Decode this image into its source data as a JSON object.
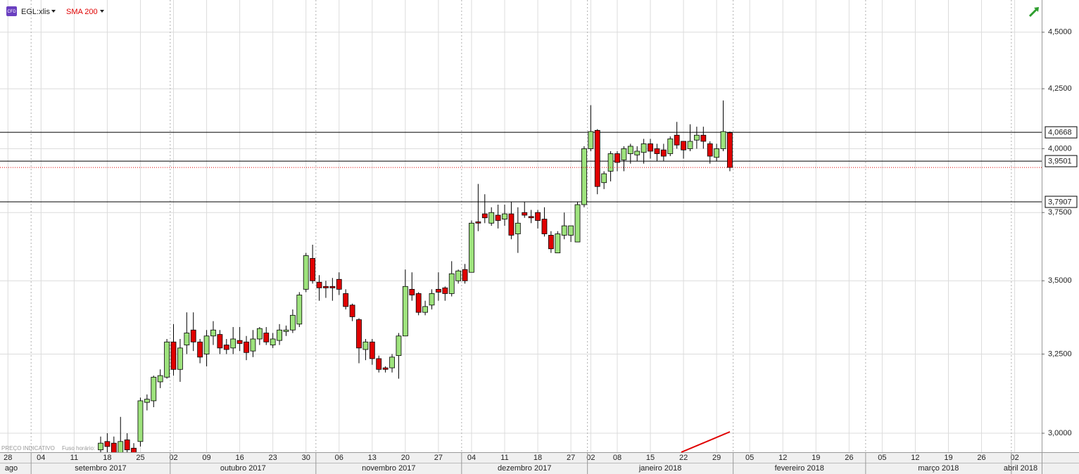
{
  "chart_data": {
    "type": "candlestick",
    "symbol": "EGL:xlis",
    "badge": "CFD",
    "indicator": "SMA 200",
    "indicator_color": "#e00000",
    "footnote": "PREÇO INDICATIVO",
    "timezone_label": "Fuso horário:",
    "log_scale": true,
    "grid": true,
    "up_color": "#9ee37d",
    "down_color": "#e00000",
    "ylim": [
      2.943,
      4.649
    ],
    "yticks": [
      {
        "value": 3.0,
        "label": "3,0000"
      },
      {
        "value": 3.25,
        "label": "3,2500"
      },
      {
        "value": 3.5,
        "label": "3,5000"
      },
      {
        "value": 3.75,
        "label": "3,7500"
      },
      {
        "value": 4.0,
        "label": "4,0000"
      },
      {
        "value": 4.25,
        "label": "4,2500"
      },
      {
        "value": 4.5,
        "label": "4,5000"
      }
    ],
    "levels": [
      {
        "value": 4.0668,
        "label": "4,0668"
      },
      {
        "value": 3.9501,
        "label": "3,9501"
      },
      {
        "value": 3.7907,
        "label": "3,7907"
      }
    ],
    "xticks": [
      {
        "value": "2017-08-28",
        "label": "28"
      },
      {
        "value": "2017-09-04",
        "label": "04"
      },
      {
        "value": "2017-09-11",
        "label": "11"
      },
      {
        "value": "2017-09-18",
        "label": "18"
      },
      {
        "value": "2017-09-25",
        "label": "25"
      },
      {
        "value": "2017-10-02",
        "label": "02"
      },
      {
        "value": "2017-10-09",
        "label": "09"
      },
      {
        "value": "2017-10-16",
        "label": "16"
      },
      {
        "value": "2017-10-23",
        "label": "23"
      },
      {
        "value": "2017-10-30",
        "label": "30"
      },
      {
        "value": "2017-11-06",
        "label": "06"
      },
      {
        "value": "2017-11-13",
        "label": "13"
      },
      {
        "value": "2017-11-20",
        "label": "20"
      },
      {
        "value": "2017-11-27",
        "label": "27"
      },
      {
        "value": "2017-12-04",
        "label": "04"
      },
      {
        "value": "2017-12-11",
        "label": "11"
      },
      {
        "value": "2017-12-18",
        "label": "18"
      },
      {
        "value": "2017-12-27",
        "label": "27"
      },
      {
        "value": "2018-01-02",
        "label": "02"
      },
      {
        "value": "2018-01-08",
        "label": "08"
      },
      {
        "value": "2018-01-15",
        "label": "15"
      },
      {
        "value": "2018-01-22",
        "label": "22"
      },
      {
        "value": "2018-01-29",
        "label": "29"
      },
      {
        "value": "2018-02-05",
        "label": "05"
      },
      {
        "value": "2018-02-12",
        "label": "12"
      },
      {
        "value": "2018-02-19",
        "label": "19"
      },
      {
        "value": "2018-02-26",
        "label": "26"
      },
      {
        "value": "2018-03-05",
        "label": "05"
      },
      {
        "value": "2018-03-12",
        "label": "12"
      },
      {
        "value": "2018-03-19",
        "label": "19"
      },
      {
        "value": "2018-03-26",
        "label": "26"
      },
      {
        "value": "2018-04-02",
        "label": "02"
      }
    ],
    "months": [
      {
        "value": "2017-08",
        "label": "ago"
      },
      {
        "value": "2017-09",
        "label": "setembro 2017"
      },
      {
        "value": "2017-10",
        "label": "outubro 2017"
      },
      {
        "value": "2017-11",
        "label": "novembro 2017"
      },
      {
        "value": "2017-12",
        "label": "dezembro 2017"
      },
      {
        "value": "2018-01",
        "label": "janeiro 2018"
      },
      {
        "value": "2018-02",
        "label": "fevereiro 2018"
      },
      {
        "value": "2018-03",
        "label": "março 2018"
      },
      {
        "value": "2018-04",
        "label": "abril 2018"
      }
    ],
    "x": [
      "2017-09-15",
      "2017-09-18",
      "2017-09-19",
      "2017-09-20",
      "2017-09-21",
      "2017-09-22",
      "2017-09-25",
      "2017-09-26",
      "2017-09-27",
      "2017-09-28",
      "2017-09-29",
      "2017-10-02",
      "2017-10-03",
      "2017-10-04",
      "2017-10-05",
      "2017-10-06",
      "2017-10-09",
      "2017-10-10",
      "2017-10-11",
      "2017-10-12",
      "2017-10-13",
      "2017-10-16",
      "2017-10-17",
      "2017-10-18",
      "2017-10-19",
      "2017-10-20",
      "2017-10-23",
      "2017-10-24",
      "2017-10-25",
      "2017-10-26",
      "2017-10-27",
      "2017-10-30",
      "2017-10-31",
      "2017-11-01",
      "2017-11-02",
      "2017-11-03",
      "2017-11-06",
      "2017-11-07",
      "2017-11-08",
      "2017-11-09",
      "2017-11-10",
      "2017-11-13",
      "2017-11-14",
      "2017-11-15",
      "2017-11-16",
      "2017-11-17",
      "2017-11-20",
      "2017-11-21",
      "2017-11-22",
      "2017-11-23",
      "2017-11-24",
      "2017-11-27",
      "2017-11-28",
      "2017-11-29",
      "2017-11-30",
      "2017-12-01",
      "2017-12-04",
      "2017-12-05",
      "2017-12-06",
      "2017-12-07",
      "2017-12-08",
      "2017-12-11",
      "2017-12-12",
      "2017-12-13",
      "2017-12-14",
      "2017-12-15",
      "2017-12-18",
      "2017-12-19",
      "2017-12-20",
      "2017-12-21",
      "2017-12-22",
      "2017-12-27",
      "2017-12-28",
      "2017-12-29",
      "2018-01-02",
      "2018-01-03",
      "2018-01-04",
      "2018-01-05",
      "2018-01-08",
      "2018-01-09",
      "2018-01-10",
      "2018-01-11",
      "2018-01-12",
      "2018-01-15",
      "2018-01-16",
      "2018-01-17",
      "2018-01-18",
      "2018-01-19",
      "2018-01-22",
      "2018-01-23",
      "2018-01-24",
      "2018-01-25",
      "2018-01-26",
      "2018-01-29",
      "2018-01-30",
      "2018-01-31"
    ],
    "open": [
      2.95,
      2.975,
      2.97,
      2.94,
      2.98,
      2.955,
      2.975,
      3.095,
      3.1,
      3.16,
      3.175,
      3.29,
      3.2,
      3.28,
      3.33,
      3.29,
      3.25,
      3.31,
      3.315,
      3.28,
      3.27,
      3.295,
      3.29,
      3.26,
      3.3,
      3.32,
      3.28,
      3.295,
      3.325,
      3.33,
      3.35,
      3.47,
      3.58,
      3.495,
      3.48,
      3.48,
      3.505,
      3.455,
      3.415,
      3.365,
      3.265,
      3.29,
      3.235,
      3.205,
      3.205,
      3.245,
      3.31,
      3.47,
      3.455,
      3.39,
      3.415,
      3.47,
      3.475,
      3.455,
      3.5,
      3.54,
      3.53,
      3.715,
      3.745,
      3.71,
      3.74,
      3.725,
      3.745,
      3.67,
      3.75,
      3.735,
      3.75,
      3.725,
      3.665,
      3.6,
      3.665,
      3.665,
      3.64,
      3.78,
      4.0,
      4.075,
      3.865,
      3.91,
      3.98,
      3.955,
      3.98,
      3.975,
      3.985,
      4.02,
      4.0,
      3.995,
      3.98,
      4.055,
      4.03,
      4.0,
      4.035,
      4.055,
      4.02,
      3.965,
      4.0,
      4.065
    ],
    "high": [
      2.99,
      3.0,
      2.99,
      3.05,
      3.0,
      2.97,
      3.11,
      3.12,
      3.18,
      3.2,
      3.3,
      3.35,
      3.3,
      3.39,
      3.39,
      3.3,
      3.33,
      3.36,
      3.33,
      3.3,
      3.34,
      3.34,
      3.31,
      3.33,
      3.34,
      3.34,
      3.32,
      3.35,
      3.345,
      3.4,
      3.46,
      3.6,
      3.63,
      3.52,
      3.5,
      3.51,
      3.53,
      3.47,
      3.42,
      3.37,
      3.3,
      3.3,
      3.245,
      3.21,
      3.25,
      3.32,
      3.54,
      3.53,
      3.46,
      3.43,
      3.47,
      3.53,
      3.48,
      3.57,
      3.54,
      3.56,
      3.72,
      3.86,
      3.82,
      3.77,
      3.78,
      3.78,
      3.79,
      3.77,
      3.79,
      3.76,
      3.76,
      3.77,
      3.68,
      3.68,
      3.75,
      3.7,
      3.79,
      4.01,
      4.18,
      4.08,
      3.91,
      3.99,
      3.99,
      4.01,
      4.02,
      4.01,
      4.04,
      4.04,
      4.02,
      4.02,
      4.05,
      4.11,
      4.03,
      4.1,
      4.09,
      4.09,
      4.03,
      4.02,
      4.2,
      4.07
    ],
    "low": [
      2.93,
      2.94,
      2.92,
      2.92,
      2.93,
      2.92,
      2.96,
      3.07,
      3.08,
      3.14,
      3.17,
      3.18,
      3.16,
      3.25,
      3.26,
      3.22,
      3.21,
      3.28,
      3.25,
      3.25,
      3.25,
      3.26,
      3.23,
      3.24,
      3.28,
      3.28,
      3.27,
      3.28,
      3.31,
      3.32,
      3.34,
      3.46,
      3.49,
      3.43,
      3.44,
      3.43,
      3.45,
      3.4,
      3.36,
      3.22,
      3.23,
      3.215,
      3.19,
      3.19,
      3.19,
      3.17,
      3.31,
      3.43,
      3.38,
      3.38,
      3.4,
      3.43,
      3.43,
      3.445,
      3.49,
      3.49,
      3.53,
      3.68,
      3.71,
      3.7,
      3.69,
      3.7,
      3.65,
      3.6,
      3.73,
      3.71,
      3.69,
      3.66,
      3.6,
      3.6,
      3.65,
      3.64,
      3.64,
      3.77,
      3.99,
      3.82,
      3.84,
      3.87,
      3.91,
      3.91,
      3.94,
      3.95,
      3.94,
      3.96,
      3.95,
      3.95,
      3.97,
      4.0,
      3.96,
      3.99,
      4.0,
      4.0,
      3.94,
      3.95,
      3.99,
      3.91
    ],
    "close": [
      2.97,
      2.96,
      2.94,
      2.975,
      2.95,
      2.94,
      3.1,
      3.105,
      3.175,
      3.18,
      3.29,
      3.2,
      3.27,
      3.32,
      3.29,
      3.24,
      3.31,
      3.33,
      3.27,
      3.265,
      3.3,
      3.285,
      3.255,
      3.3,
      3.335,
      3.29,
      3.3,
      3.33,
      3.33,
      3.38,
      3.45,
      3.59,
      3.5,
      3.475,
      3.475,
      3.475,
      3.47,
      3.41,
      3.375,
      3.27,
      3.29,
      3.235,
      3.2,
      3.2,
      3.24,
      3.31,
      3.48,
      3.45,
      3.39,
      3.41,
      3.455,
      3.46,
      3.455,
      3.525,
      3.535,
      3.5,
      3.71,
      3.71,
      3.73,
      3.75,
      3.72,
      3.745,
      3.665,
      3.71,
      3.74,
      3.73,
      3.72,
      3.67,
      3.615,
      3.67,
      3.7,
      3.7,
      3.78,
      4.0,
      4.07,
      3.85,
      3.9,
      3.98,
      3.945,
      4.0,
      4.01,
      3.99,
      4.02,
      3.99,
      3.98,
      3.97,
      4.04,
      4.015,
      3.995,
      4.03,
      4.055,
      4.03,
      3.97,
      4.0,
      4.07,
      3.925
    ]
  }
}
